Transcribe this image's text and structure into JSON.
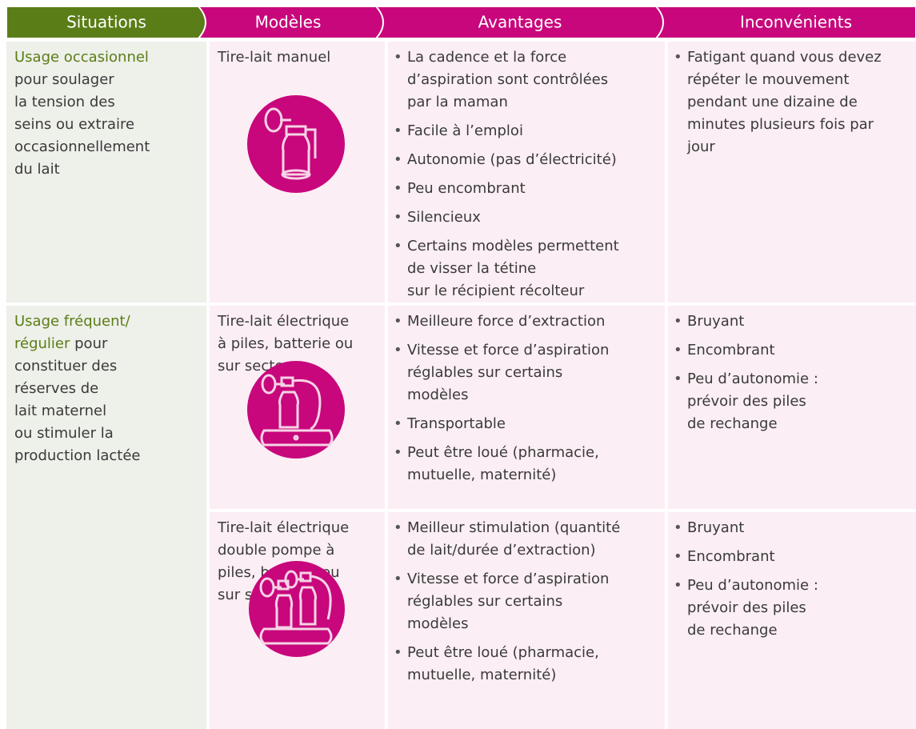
{
  "header": {
    "columns": [
      "Situations",
      "Modèles",
      "Avantages",
      "Inconvénients"
    ]
  },
  "rows": [
    {
      "situation": {
        "highlight": "Usage occasionnel",
        "text": "pour soulager\nla tension des\nseins ou extraire\noccasionnellement\ndu lait"
      },
      "model": "Tire-lait manuel",
      "advantages": [
        "La cadence et la force\nd’aspiration sont contrôlées\npar la maman",
        "Facile à l’emploi",
        "Autonomie (pas d’électricité)",
        "Peu encombrant",
        "Silencieux",
        "Certains modèles permettent\nde visser la tétine\nsur le récipient récolteur"
      ],
      "drawbacks": [
        "Fatigant quand vous devez\nrépéter le mouvement\npendant une dizaine de\nminutes plusieurs fois par\njour"
      ]
    },
    {
      "situation": {
        "highlight": "Usage fréquent/\nrégulier",
        "text": "pour\nconstituer des\nréserves de\nlait maternel\nou stimuler la\nproduction lactée"
      },
      "model": "Tire-lait électrique\nà piles, batterie ou\nsur secteur",
      "advantages": [
        "Meilleure force d’extraction",
        "Vitesse et force d’aspiration\nréglables sur certains\nmodèles",
        "Transportable",
        "Peut être loué (pharmacie,\nmutuelle, maternité)"
      ],
      "drawbacks": [
        "Bruyant",
        "Encombrant",
        "Peu d’autonomie :\nprévoir des piles\nde rechange"
      ]
    },
    {
      "model": "Tire-lait électrique\ndouble pompe à\npiles, batterie ou\nsur secteur",
      "advantages": [
        "Meilleur stimulation (quantité\nde lait/durée d’extraction)",
        "Vitesse et force d’aspiration\nréglables sur certains\nmodèles",
        "Peut être loué (pharmacie,\nmutuelle, maternité)"
      ],
      "drawbacks": [
        "Bruyant",
        "Encombrant",
        "Peu d’autonomie :\nprévoir des piles\nde rechange"
      ]
    }
  ]
}
